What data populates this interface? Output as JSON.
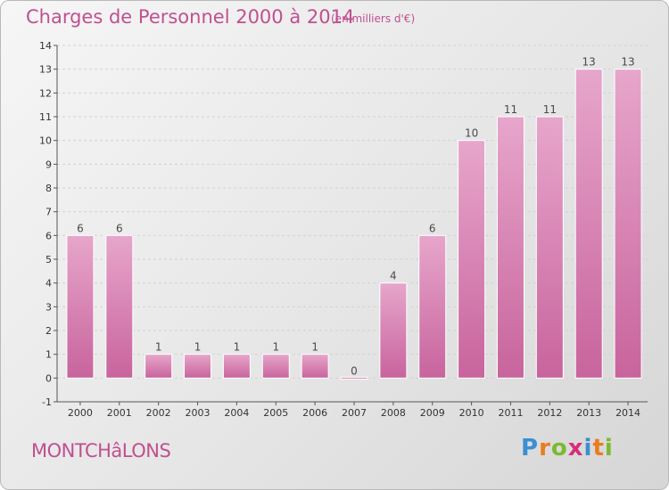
{
  "header": {
    "title": "Charges de Personnel 2000 à 2014",
    "unit": "(en milliers d'€)"
  },
  "footer": {
    "town": "MONTCHâLONS",
    "logo": {
      "letters": [
        "P",
        "r",
        "o",
        "x",
        "i",
        "t",
        "i"
      ],
      "colors": [
        "#3a8fd1",
        "#e87d1e",
        "#7cb932",
        "#d62d7a",
        "#3a8fd1",
        "#e87d1e",
        "#7cb932"
      ]
    }
  },
  "chart_data": {
    "type": "bar",
    "categories": [
      "2000",
      "2001",
      "2002",
      "2003",
      "2004",
      "2005",
      "2006",
      "2007",
      "2008",
      "2009",
      "2010",
      "2011",
      "2012",
      "2013",
      "2014"
    ],
    "values": [
      6,
      6,
      1,
      1,
      1,
      1,
      1,
      0,
      4,
      6,
      10,
      11,
      11,
      13,
      13
    ],
    "ylim": [
      -1,
      14
    ],
    "yticks": [
      -1,
      0,
      1,
      2,
      3,
      4,
      5,
      6,
      7,
      8,
      9,
      10,
      11,
      12,
      13,
      14
    ],
    "grid": true,
    "colors": {
      "bar": "#c8649d",
      "bar_light": "#e7a6cb",
      "label": "#4a4a4a",
      "axis": "#555555"
    }
  }
}
